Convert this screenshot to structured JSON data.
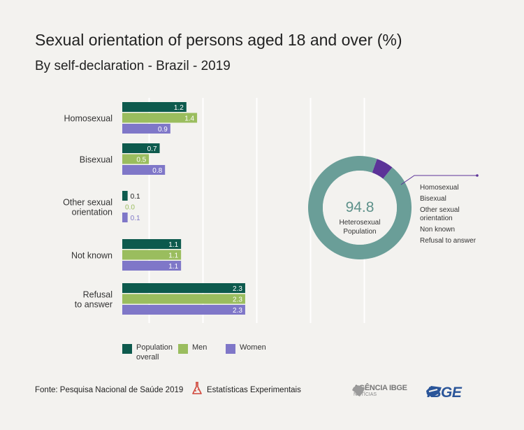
{
  "title": "Sexual orientation of persons aged 18 and over (%)",
  "subtitle": "By self-declaration - Brazil - 2019",
  "colors": {
    "population": "#0d5a4d",
    "men": "#9abd5e",
    "women": "#7f77c8",
    "donut_main": "#6a9e98",
    "donut_highlight": "#5c3398"
  },
  "chart_data": [
    {
      "type": "bar",
      "orientation": "horizontal",
      "categories": [
        [
          "Homosexual"
        ],
        [
          "Bisexual"
        ],
        [
          "Other sexual",
          "orientation"
        ],
        [
          "Not known"
        ],
        [
          "Refusal",
          "to answer"
        ]
      ],
      "series": [
        {
          "name": "Population overall",
          "values": [
            1.2,
            0.7,
            0.1,
            1.1,
            2.3
          ],
          "labels": [
            "1.2",
            "0.7",
            "0.1",
            "1.1",
            "2.3"
          ]
        },
        {
          "name": "Men",
          "values": [
            1.4,
            0.5,
            0.0,
            1.1,
            2.3
          ],
          "labels": [
            "1.4",
            "0.5",
            "0.0",
            "1.1",
            "2.3"
          ]
        },
        {
          "name": "Women",
          "values": [
            0.9,
            0.8,
            0.1,
            1.1,
            2.3
          ],
          "labels": [
            "0.9",
            "0.8",
            "0.1",
            "1.1",
            "2.3"
          ]
        }
      ],
      "legend": {
        "population": [
          "Population",
          "overall"
        ],
        "men": "Men",
        "women": "Women",
        "position": "bottom"
      },
      "grid": true
    },
    {
      "type": "pie",
      "style": "donut",
      "center_value": "94.8",
      "center_label": [
        "Heterosexual",
        "Population"
      ],
      "slices": [
        {
          "label": "Heterosexual Population",
          "value": 94.8
        },
        {
          "label": "Homosexual",
          "value": 1.2
        },
        {
          "label": "Bisexual",
          "value": 0.7
        },
        {
          "label": "Other sexual orientation",
          "value": 0.1
        },
        {
          "label": "Non known",
          "value": 1.1
        },
        {
          "label": "Refusal to answer",
          "value": 2.3
        }
      ],
      "annotation_labels": [
        [
          "Homosexual"
        ],
        [
          "Bisexual"
        ],
        [
          "Other sexual",
          "orientation"
        ],
        [
          "Non known"
        ],
        [
          "Refusal to answer"
        ]
      ]
    }
  ],
  "footer": {
    "source": "Fonte: Pesquisa Nacional de Saúde 2019",
    "experimental": "Estatísticas Experimentais",
    "agencia_line1": "AGÊNCIA IBGE",
    "agencia_line2": "NOTÍCIAS",
    "ibge": "IBGE"
  }
}
